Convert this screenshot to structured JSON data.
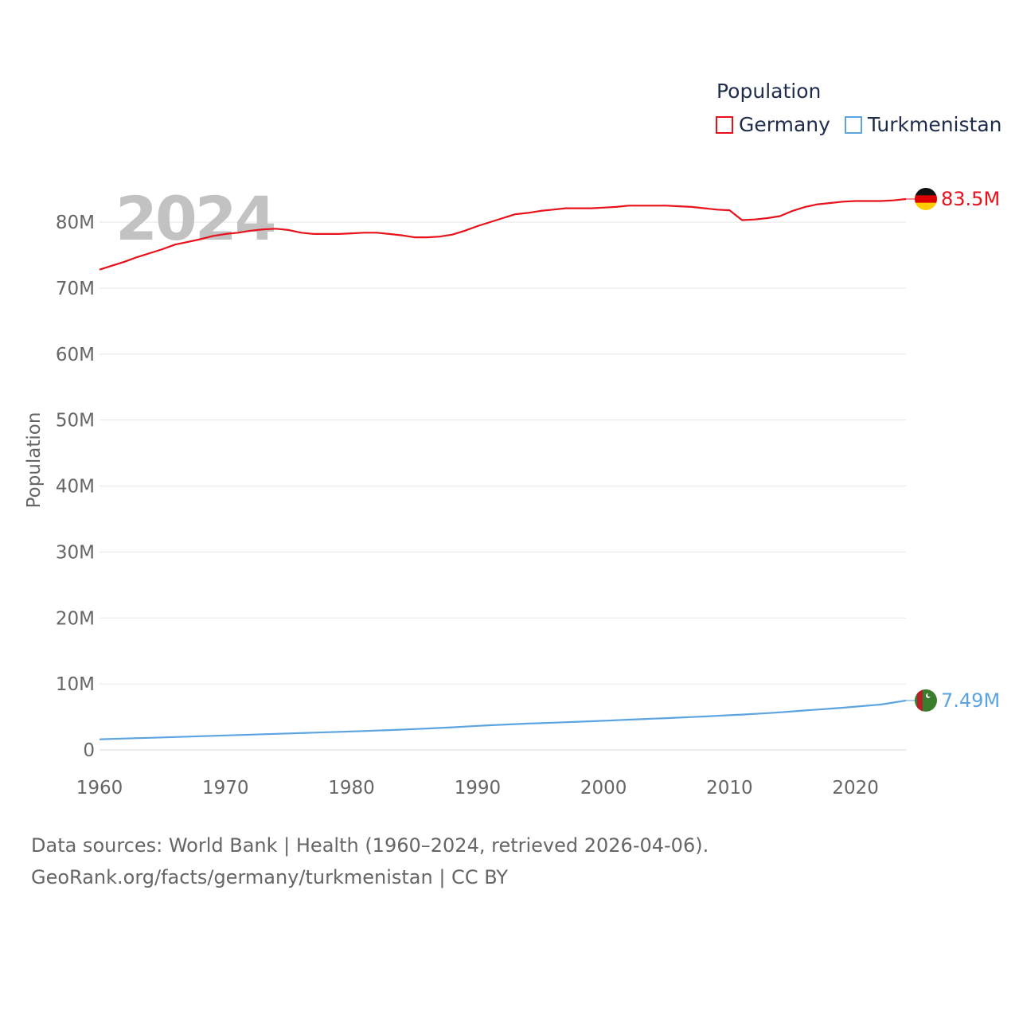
{
  "chart_data": {
    "type": "line",
    "title": "Population",
    "ylabel": "Population",
    "xlabel": "",
    "year_watermark": "2024",
    "xlim": [
      1960,
      2024
    ],
    "ylim": [
      0,
      85000000
    ],
    "x_ticks": [
      1960,
      1970,
      1980,
      1990,
      2000,
      2010,
      2020
    ],
    "y_ticks": [
      {
        "value": 0,
        "label": "0"
      },
      {
        "value": 10000000,
        "label": "10M"
      },
      {
        "value": 20000000,
        "label": "20M"
      },
      {
        "value": 30000000,
        "label": "30M"
      },
      {
        "value": 40000000,
        "label": "40M"
      },
      {
        "value": 50000000,
        "label": "50M"
      },
      {
        "value": 60000000,
        "label": "60M"
      },
      {
        "value": 70000000,
        "label": "70M"
      },
      {
        "value": 80000000,
        "label": "80M"
      }
    ],
    "grid": true,
    "legend_position": "top-right",
    "x": [
      1960,
      1961,
      1962,
      1963,
      1964,
      1965,
      1966,
      1967,
      1968,
      1969,
      1970,
      1971,
      1972,
      1973,
      1974,
      1975,
      1976,
      1977,
      1978,
      1979,
      1980,
      1981,
      1982,
      1983,
      1984,
      1985,
      1986,
      1987,
      1988,
      1989,
      1990,
      1991,
      1992,
      1993,
      1994,
      1995,
      1996,
      1997,
      1998,
      1999,
      2000,
      2001,
      2002,
      2003,
      2004,
      2005,
      2006,
      2007,
      2008,
      2009,
      2010,
      2011,
      2012,
      2013,
      2014,
      2015,
      2016,
      2017,
      2018,
      2019,
      2020,
      2021,
      2022,
      2023,
      2024
    ],
    "series": [
      {
        "name": "Germany",
        "color": "#e8101a",
        "end_label": "83.5M",
        "flag": "germany-flag",
        "values": [
          72800000,
          73400000,
          74000000,
          74700000,
          75300000,
          75900000,
          76600000,
          77000000,
          77400000,
          77900000,
          78200000,
          78400000,
          78700000,
          78900000,
          79000000,
          78800000,
          78400000,
          78200000,
          78200000,
          78200000,
          78300000,
          78400000,
          78400000,
          78200000,
          78000000,
          77700000,
          77700000,
          77800000,
          78100000,
          78700000,
          79400000,
          80000000,
          80600000,
          81200000,
          81400000,
          81700000,
          81900000,
          82100000,
          82100000,
          82100000,
          82200000,
          82300000,
          82500000,
          82500000,
          82500000,
          82500000,
          82400000,
          82300000,
          82100000,
          81900000,
          81800000,
          80300000,
          80400000,
          80600000,
          80900000,
          81700000,
          82300000,
          82700000,
          82900000,
          83100000,
          83200000,
          83200000,
          83200000,
          83300000,
          83500000
        ]
      },
      {
        "name": "Turkmenistan",
        "color": "#5ba4e0",
        "end_label": "7.49M",
        "flag": "turkmenistan-flag",
        "values": [
          1600000,
          1660000,
          1720000,
          1780000,
          1840000,
          1900000,
          1960000,
          2020000,
          2080000,
          2140000,
          2200000,
          2260000,
          2320000,
          2380000,
          2440000,
          2500000,
          2560000,
          2620000,
          2680000,
          2740000,
          2800000,
          2860000,
          2930000,
          3000000,
          3080000,
          3160000,
          3240000,
          3330000,
          3430000,
          3540000,
          3650000,
          3740000,
          3830000,
          3910000,
          3990000,
          4060000,
          4130000,
          4200000,
          4270000,
          4340000,
          4420000,
          4500000,
          4580000,
          4660000,
          4740000,
          4820000,
          4900000,
          4980000,
          5070000,
          5160000,
          5260000,
          5360000,
          5470000,
          5580000,
          5700000,
          5840000,
          5980000,
          6120000,
          6260000,
          6400000,
          6560000,
          6720000,
          6880000,
          7180000,
          7490000
        ]
      }
    ]
  },
  "legend": {
    "title": "Population",
    "items": [
      "Germany",
      "Turkmenistan"
    ]
  },
  "footer": {
    "line1": "Data sources: World Bank | Health (1960–2024, retrieved 2026-04-06).",
    "line2": "GeoRank.org/facts/germany/turkmenistan | CC BY"
  }
}
